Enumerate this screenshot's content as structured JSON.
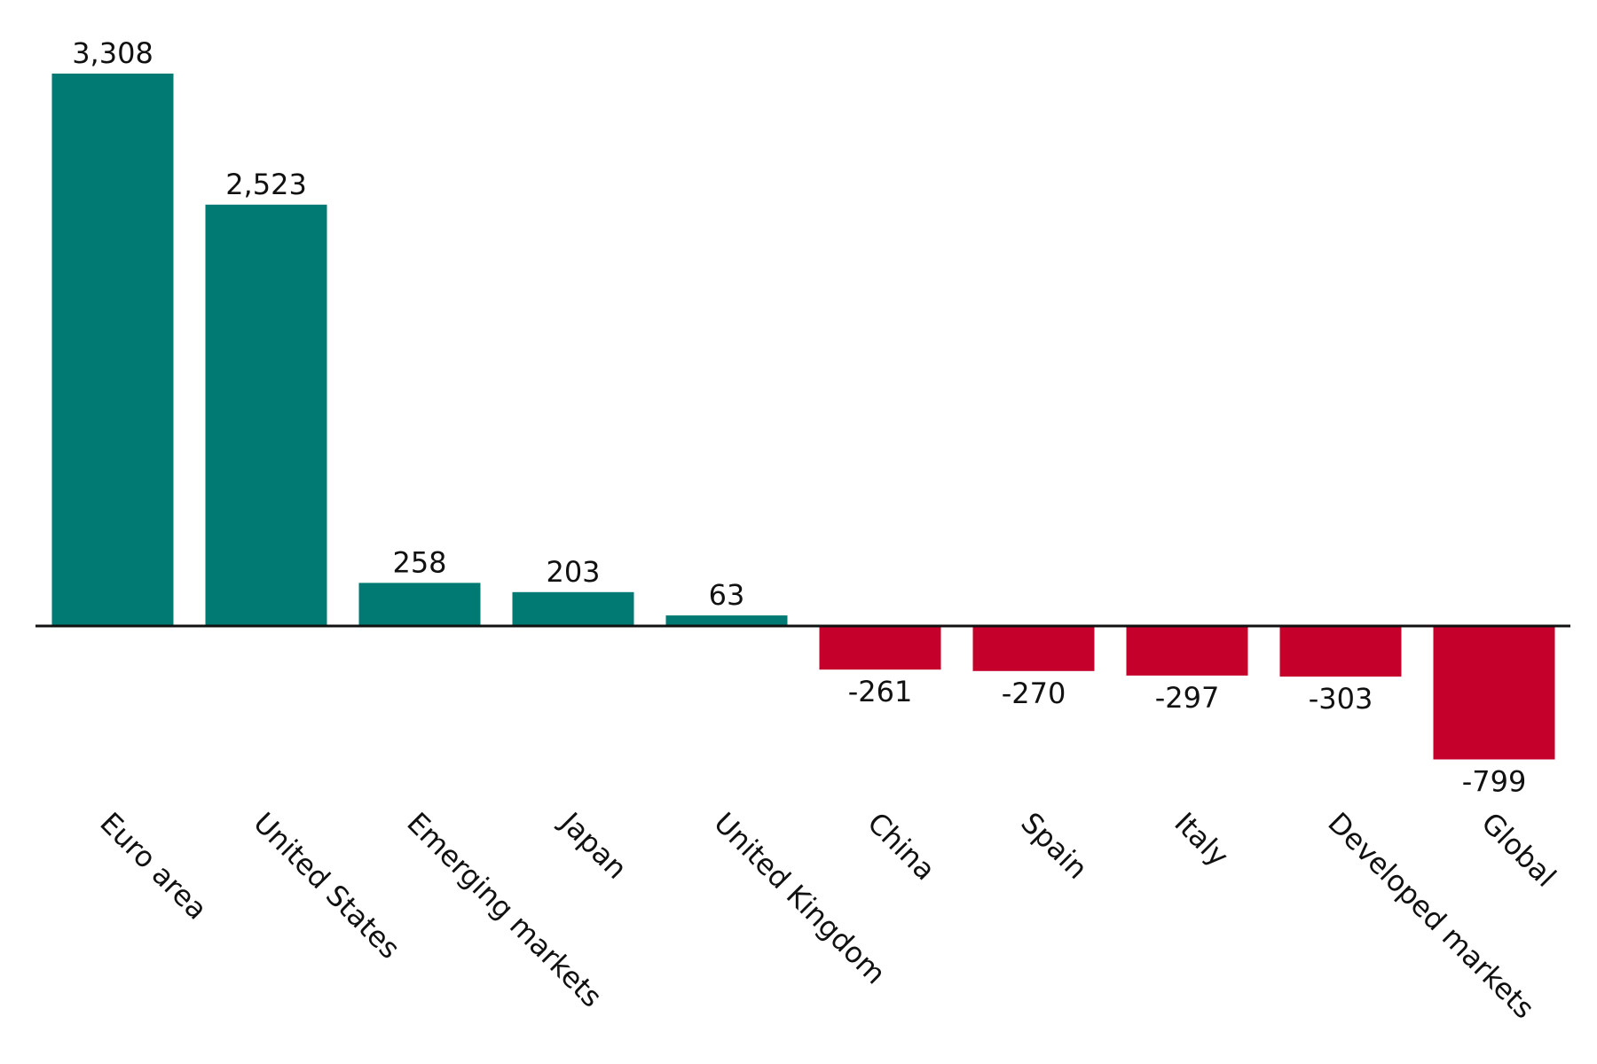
{
  "colors": {
    "positive": "#007A73",
    "negative": "#C4002B",
    "axis": "#111111",
    "text": "#111111",
    "background": "#FFFFFF"
  },
  "chart_data": {
    "type": "bar",
    "categories": [
      "Euro area",
      "United States",
      "Emerging markets",
      "Japan",
      "United Kingdom",
      "China",
      "Spain",
      "Italy",
      "Developed markets",
      "Global"
    ],
    "values": [
      3308,
      2523,
      258,
      203,
      63,
      -261,
      -270,
      -297,
      -303,
      -799
    ],
    "value_labels": [
      "3,308",
      "2,523",
      "258",
      "203",
      "63",
      "-261",
      "-270",
      "-297",
      "-303",
      "-799"
    ],
    "title": "",
    "xlabel": "",
    "ylabel": "",
    "ylim": [
      -799,
      3308
    ],
    "grid": false,
    "legend": "none"
  }
}
